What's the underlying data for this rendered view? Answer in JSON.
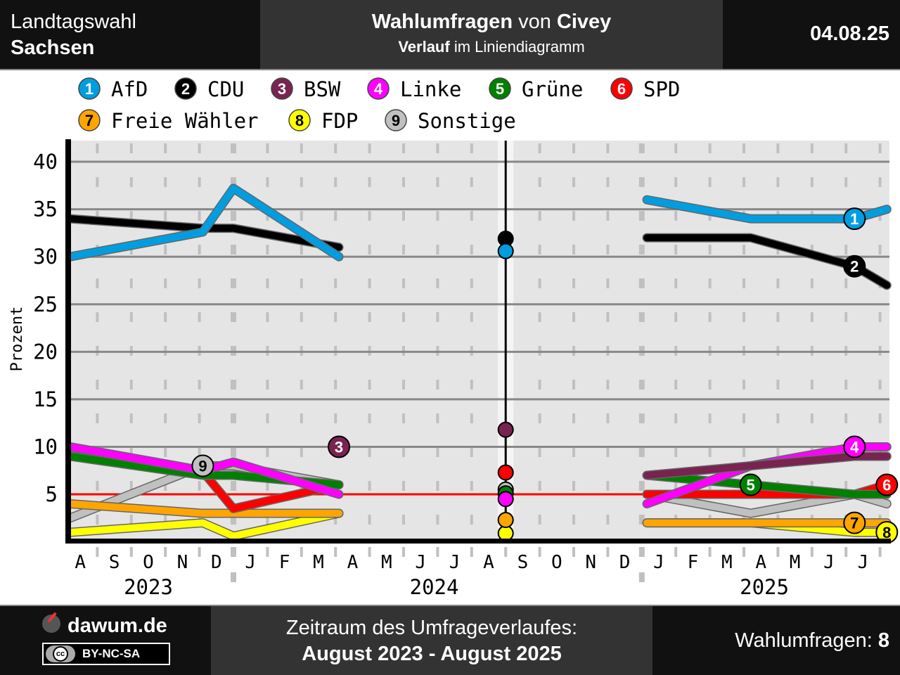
{
  "header": {
    "left_line1": "Landtagswahl",
    "left_line2": "Sachsen",
    "title_bold": "Wahlumfragen",
    "title_rest": " von ",
    "title_bold2": "Civey",
    "subtitle_bold": "Verlauf",
    "subtitle_rest": " im Liniendiagramm",
    "date": "04.08.25"
  },
  "footer": {
    "brand": "dawum.de",
    "license": "BY-NC-SA",
    "cc": "cc",
    "period_label": "Zeitraum des Umfrageverlaufes:",
    "period": "August 2023 - August 2025",
    "count_label": "Wahlumfragen: ",
    "count": "8"
  },
  "chart_data": {
    "type": "line",
    "ylabel": "Prozent",
    "ylim": [
      0,
      42
    ],
    "yticks": [
      5,
      10,
      15,
      20,
      25,
      30,
      35,
      40
    ],
    "threshold": 5,
    "x_unit": "months since 1 Aug 2023",
    "month_labels": [
      "A",
      "S",
      "O",
      "N",
      "D",
      "J",
      "F",
      "M",
      "A",
      "M",
      "J",
      "J",
      "A",
      "S",
      "O",
      "N",
      "D",
      "J",
      "F",
      "M",
      "A",
      "M",
      "J",
      "J"
    ],
    "year_labels": [
      {
        "label": "2023",
        "month": 2.5
      },
      {
        "label": "2024",
        "month": 10.9
      },
      {
        "label": "2025",
        "month": 20.6
      }
    ],
    "election_month": 13,
    "x_pre": [
      0.2,
      4.1,
      5,
      8.1
    ],
    "x_post": [
      17.15,
      20.2,
      23.25,
      24.2
    ],
    "series": [
      {
        "num": "1",
        "name": "AfD",
        "color": "#009ee0",
        "text": "#fff",
        "pre": [
          30,
          32.6,
          37.2,
          30
        ],
        "post": [
          36,
          34,
          34,
          35
        ],
        "result": 30.6,
        "label": [
          "post",
          2
        ]
      },
      {
        "num": "2",
        "name": "CDU",
        "color": "#000000",
        "text": "#fff",
        "pre": [
          34,
          33,
          33,
          31
        ],
        "post": [
          32,
          32,
          29,
          27
        ],
        "result": 31.9,
        "label": [
          "post",
          2
        ]
      },
      {
        "num": "3",
        "name": "BSW",
        "color": "#792351",
        "text": "#fff",
        "pre": [
          null,
          null,
          null,
          10
        ],
        "post": [
          7,
          8,
          9,
          9
        ],
        "result": 11.8,
        "label": [
          "pre",
          3
        ]
      },
      {
        "num": "4",
        "name": "Linke",
        "color": "#ff00ff",
        "text": "#fff",
        "pre": [
          10,
          7.5,
          8.4,
          5
        ],
        "post": [
          4,
          8,
          10,
          10
        ],
        "result": 4.5,
        "label": [
          "post",
          2
        ]
      },
      {
        "num": "5",
        "name": "Grüne",
        "color": "#008000",
        "text": "#fff",
        "pre": [
          9,
          7,
          7,
          6
        ],
        "post": [
          7,
          6,
          5,
          5
        ],
        "result": 5.1,
        "label": [
          "post",
          1
        ]
      },
      {
        "num": "6",
        "name": "SPD",
        "color": "#ff0000",
        "text": "#fff",
        "pre": [
          9,
          7.4,
          3.5,
          6
        ],
        "post": [
          5,
          5,
          5,
          6
        ],
        "result": 7.3,
        "label": [
          "post",
          3
        ]
      },
      {
        "num": "7",
        "name": "Freie Wähler",
        "color": "#ffa500",
        "text": "#000",
        "pre": [
          4,
          3,
          3,
          3
        ],
        "post": [
          2,
          2,
          2,
          2
        ],
        "result": 2.3,
        "label": [
          "post",
          2
        ]
      },
      {
        "num": "8",
        "name": "FDP",
        "color": "#ffff00",
        "text": "#000",
        "pre": [
          1,
          2,
          0.6,
          3
        ],
        "post": [
          2,
          2,
          1,
          1
        ],
        "result": 0.9,
        "label": [
          "post",
          3
        ]
      },
      {
        "num": "9",
        "name": "Sonstige",
        "color": "#c0c0c0",
        "text": "#000",
        "pre": [
          2.5,
          8,
          8,
          6
        ],
        "post": [
          5,
          3,
          5,
          4
        ],
        "result": 5.5,
        "label": [
          "pre",
          1
        ]
      }
    ]
  }
}
